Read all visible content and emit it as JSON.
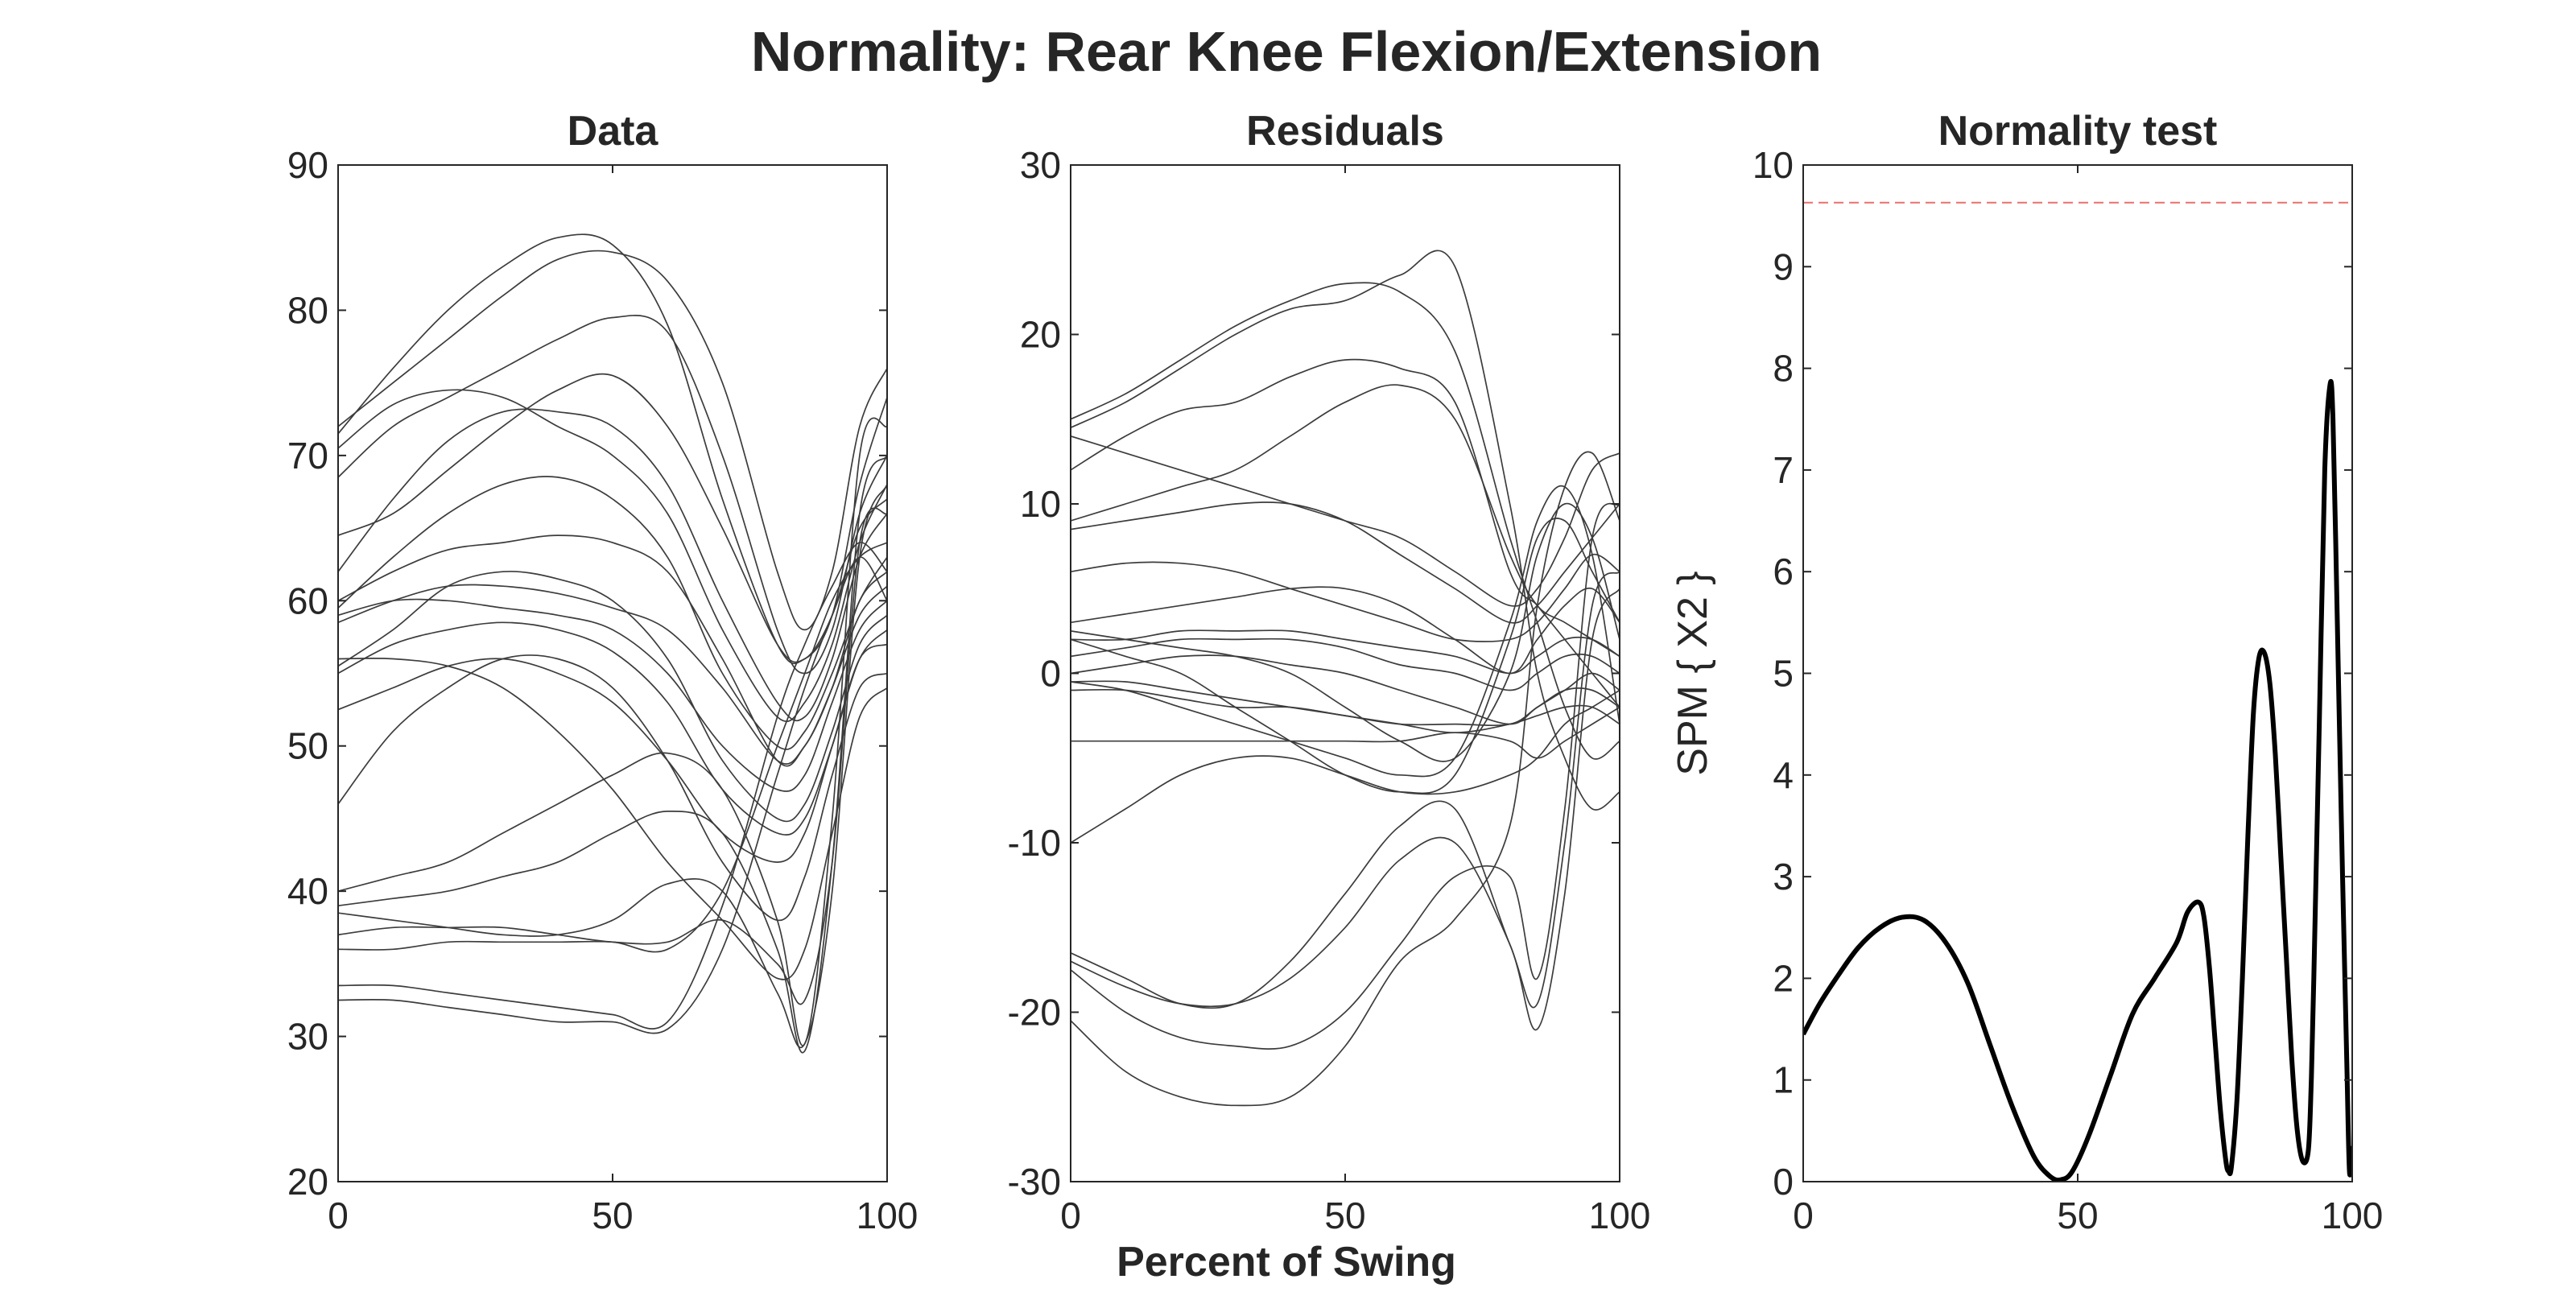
{
  "figure": {
    "title": "Normality: Rear Knee Flexion/Extension",
    "xlabel": "Percent of Swing"
  },
  "chart_data": [
    {
      "type": "line",
      "title": "Data",
      "xlabel": "",
      "ylabel": "",
      "xlim": [
        0,
        100
      ],
      "ylim": [
        20,
        90
      ],
      "x_ticks": [
        0,
        50,
        100
      ],
      "y_ticks": [
        20,
        30,
        40,
        50,
        60,
        70,
        80,
        90
      ],
      "grid": false,
      "line_color": "#3c3c3c",
      "x": [
        0,
        10,
        20,
        30,
        40,
        50,
        60,
        70,
        80,
        85,
        90,
        95,
        100
      ],
      "series": [
        {
          "values": [
            71.5,
            76,
            80,
            83,
            85,
            84.5,
            79,
            67,
            57,
            56,
            59,
            68,
            74
          ]
        },
        {
          "values": [
            72,
            75,
            78,
            81,
            83.5,
            84,
            82,
            75,
            62,
            58,
            62,
            72,
            76
          ]
        },
        {
          "values": [
            68.5,
            72,
            74,
            76,
            78,
            79.5,
            78.5,
            70,
            58,
            55,
            58,
            66,
            70
          ]
        },
        {
          "values": [
            70.5,
            73.5,
            74.5,
            74,
            72,
            70,
            66,
            58,
            52,
            53,
            57,
            64,
            68
          ]
        },
        {
          "values": [
            64.5,
            66,
            69,
            72,
            74.5,
            75.5,
            72,
            65,
            57,
            56,
            59,
            65,
            67
          ]
        },
        {
          "values": [
            62,
            67,
            71,
            73,
            73,
            72,
            68,
            60,
            53,
            52,
            56,
            63,
            66
          ]
        },
        {
          "values": [
            59.5,
            63,
            66,
            68,
            68.5,
            67,
            63,
            55,
            50,
            51,
            55,
            60,
            63
          ]
        },
        {
          "values": [
            60,
            62,
            63.5,
            64,
            64.5,
            64,
            62,
            56,
            49,
            50,
            54,
            60,
            62
          ]
        },
        {
          "values": [
            58.5,
            60,
            61,
            61,
            60.5,
            59.5,
            58,
            54,
            49,
            50,
            54,
            59,
            61
          ]
        },
        {
          "values": [
            59,
            60,
            60,
            59.5,
            59,
            58,
            55,
            50,
            47,
            48,
            53,
            58,
            60
          ]
        },
        {
          "values": [
            55.5,
            58,
            61,
            62,
            61.5,
            60,
            56,
            49,
            45,
            46,
            51,
            57,
            59
          ]
        },
        {
          "values": [
            55,
            57,
            58,
            58.5,
            58,
            56.5,
            53,
            47,
            44,
            45,
            50,
            56,
            58
          ]
        },
        {
          "values": [
            52.5,
            54,
            55.5,
            56,
            55,
            53,
            49,
            44,
            42,
            44,
            50,
            56,
            57
          ]
        },
        {
          "values": [
            46,
            51,
            54,
            56,
            56,
            54,
            49,
            42,
            38,
            41,
            48,
            54,
            55
          ]
        },
        {
          "values": [
            56,
            56,
            55.5,
            54,
            51,
            47,
            42,
            38,
            34,
            36,
            44,
            52,
            54
          ]
        },
        {
          "values": [
            40,
            41,
            42,
            44,
            46,
            48,
            49.5,
            47,
            38,
            29.5,
            45,
            70,
            72
          ]
        },
        {
          "values": [
            39,
            39.5,
            40,
            41,
            42,
            44,
            45.5,
            44,
            36,
            29,
            42,
            66,
            70
          ]
        },
        {
          "values": [
            38.5,
            38,
            37.5,
            37,
            37,
            38,
            40.5,
            40,
            33,
            29.5,
            40,
            63,
            68
          ]
        },
        {
          "values": [
            37,
            37.5,
            37.5,
            37.5,
            37,
            36.5,
            36.5,
            38,
            35,
            32.5,
            42,
            64,
            66
          ]
        },
        {
          "values": [
            36,
            36,
            36.5,
            36.5,
            36.5,
            36.5,
            36,
            40,
            50,
            55,
            60,
            63,
            64
          ]
        },
        {
          "values": [
            33.5,
            33.5,
            33,
            32.5,
            32,
            31.5,
            31,
            39,
            52,
            57,
            61,
            64,
            62
          ]
        },
        {
          "values": [
            32.5,
            32.5,
            32,
            31.5,
            31,
            31,
            30.5,
            36,
            48,
            54,
            59,
            63,
            60
          ]
        }
      ]
    },
    {
      "type": "line",
      "title": "Residuals",
      "xlabel": "",
      "ylabel": "",
      "xlim": [
        0,
        100
      ],
      "ylim": [
        -30,
        30
      ],
      "x_ticks": [
        0,
        50,
        100
      ],
      "y_ticks": [
        -30,
        -20,
        -10,
        0,
        10,
        20,
        30
      ],
      "grid": false,
      "line_color": "#3c3c3c",
      "x": [
        0,
        10,
        20,
        30,
        40,
        50,
        60,
        70,
        80,
        85,
        90,
        95,
        100
      ],
      "series": [
        {
          "values": [
            15,
            16.5,
            18.5,
            20.5,
            22,
            23,
            22.5,
            19,
            8,
            3,
            -2,
            -5,
            -4
          ]
        },
        {
          "values": [
            14.5,
            16,
            18,
            20,
            21.5,
            22,
            23.5,
            24,
            10,
            0,
            -5,
            -8,
            -7
          ]
        },
        {
          "values": [
            12,
            14,
            15.5,
            16,
            17.5,
            18.5,
            18,
            16,
            6,
            4,
            2,
            0,
            -2
          ]
        },
        {
          "values": [
            14,
            13,
            12,
            11,
            10,
            9,
            8,
            6,
            4,
            5,
            8,
            12,
            13
          ]
        },
        {
          "values": [
            9,
            10,
            11,
            12,
            14,
            16,
            17,
            15,
            7,
            4,
            3,
            2,
            1
          ]
        },
        {
          "values": [
            8.5,
            9,
            9.5,
            10,
            10,
            9,
            7,
            5,
            3,
            4,
            6,
            8,
            10
          ]
        },
        {
          "values": [
            6,
            6.5,
            6.5,
            6,
            5,
            4,
            3,
            2,
            2,
            3,
            5,
            7,
            6
          ]
        },
        {
          "values": [
            3,
            3.5,
            4,
            4.5,
            5,
            5,
            4,
            2,
            0,
            2,
            4,
            5,
            3
          ]
        },
        {
          "values": [
            2,
            2,
            2.5,
            2.5,
            2.5,
            2,
            1.5,
            1,
            0,
            1,
            2,
            2,
            1
          ]
        },
        {
          "values": [
            1,
            1.5,
            2,
            2,
            2,
            1.5,
            0.5,
            0,
            -1,
            0,
            1,
            1,
            0
          ]
        },
        {
          "values": [
            0,
            0.5,
            1,
            1,
            0.5,
            0,
            -1,
            -2,
            -3,
            -2,
            -1,
            0,
            -1
          ]
        },
        {
          "values": [
            -0.5,
            -0.5,
            -1,
            -1.5,
            -2,
            -2.5,
            -3,
            -3,
            -3,
            -2,
            -1,
            -1,
            -2
          ]
        },
        {
          "values": [
            -1,
            -1,
            -1.5,
            -2,
            -2,
            -2.5,
            -3,
            -3.5,
            -3,
            -2.5,
            -2,
            -2,
            -3
          ]
        },
        {
          "values": [
            -4,
            -4,
            -4,
            -4,
            -4,
            -4,
            -4,
            -3.5,
            -4,
            -5,
            -4,
            -3,
            -2
          ]
        },
        {
          "values": [
            -10,
            -8,
            -6,
            -5,
            -5,
            -6,
            -7,
            -7,
            -6,
            -5,
            -3,
            -2,
            -1
          ]
        },
        {
          "values": [
            -16.5,
            -18,
            -19.5,
            -19.5,
            -17,
            -13,
            -9,
            -8,
            -16,
            -19.5,
            -10,
            4,
            6
          ]
        },
        {
          "values": [
            -17,
            -18.5,
            -19.5,
            -19.5,
            -18,
            -15,
            -11,
            -10,
            -16,
            -21,
            -13,
            2,
            5
          ]
        },
        {
          "values": [
            -17.5,
            -20,
            -21.5,
            -22,
            -22,
            -20,
            -16,
            -12,
            -12,
            -18,
            -8,
            8,
            10
          ]
        },
        {
          "values": [
            -20.5,
            -23.5,
            -25,
            -25.5,
            -25,
            -22,
            -17,
            -14.5,
            -9,
            4,
            11,
            13,
            9
          ]
        },
        {
          "values": [
            2,
            1,
            0,
            -2,
            -4,
            -6,
            -7,
            -6,
            2,
            8,
            9,
            6,
            3
          ]
        },
        {
          "values": [
            2.5,
            2,
            1.5,
            1,
            0,
            -2,
            -4,
            -5,
            0,
            7,
            10,
            8,
            2
          ]
        },
        {
          "values": [
            -0.5,
            -1,
            -2,
            -3,
            -4,
            -5,
            -6,
            -5,
            3,
            9,
            11,
            7,
            -3
          ]
        }
      ]
    },
    {
      "type": "line",
      "title": "Normality test",
      "xlabel": "",
      "ylabel": "SPM { X2 }",
      "xlim": [
        0,
        100
      ],
      "ylim": [
        0,
        10
      ],
      "x_ticks": [
        0,
        50,
        100
      ],
      "y_ticks": [
        0,
        1,
        2,
        3,
        4,
        5,
        6,
        7,
        8,
        9,
        10
      ],
      "grid": false,
      "threshold": 9.63,
      "threshold_color": "#e8706d",
      "line_color": "#000000",
      "x": [
        0,
        3,
        6,
        10,
        14,
        18,
        22,
        26,
        30,
        34,
        38,
        42,
        45,
        47,
        49,
        52,
        56,
        60,
        64,
        68,
        70,
        72,
        73,
        74,
        75,
        76,
        77,
        77.5,
        78,
        79,
        80,
        81,
        82,
        83,
        84,
        85,
        86,
        87,
        88,
        89,
        90,
        91,
        92,
        92.5,
        93,
        94,
        95,
        96,
        96.5,
        97,
        98,
        99,
        99.5,
        100
      ],
      "values": [
        1.45,
        1.75,
        2.0,
        2.3,
        2.5,
        2.6,
        2.57,
        2.35,
        1.95,
        1.35,
        0.75,
        0.25,
        0.05,
        0.02,
        0.1,
        0.45,
        1.05,
        1.65,
        2.0,
        2.35,
        2.65,
        2.75,
        2.6,
        2.1,
        1.4,
        0.7,
        0.2,
        0.1,
        0.15,
        0.8,
        2.0,
        3.4,
        4.6,
        5.15,
        5.2,
        4.9,
        4.2,
        3.2,
        2.2,
        1.2,
        0.5,
        0.2,
        0.3,
        0.9,
        2.0,
        4.5,
        7.0,
        7.85,
        7.5,
        6.3,
        3.6,
        1.2,
        0.1,
        0.35
      ]
    }
  ]
}
